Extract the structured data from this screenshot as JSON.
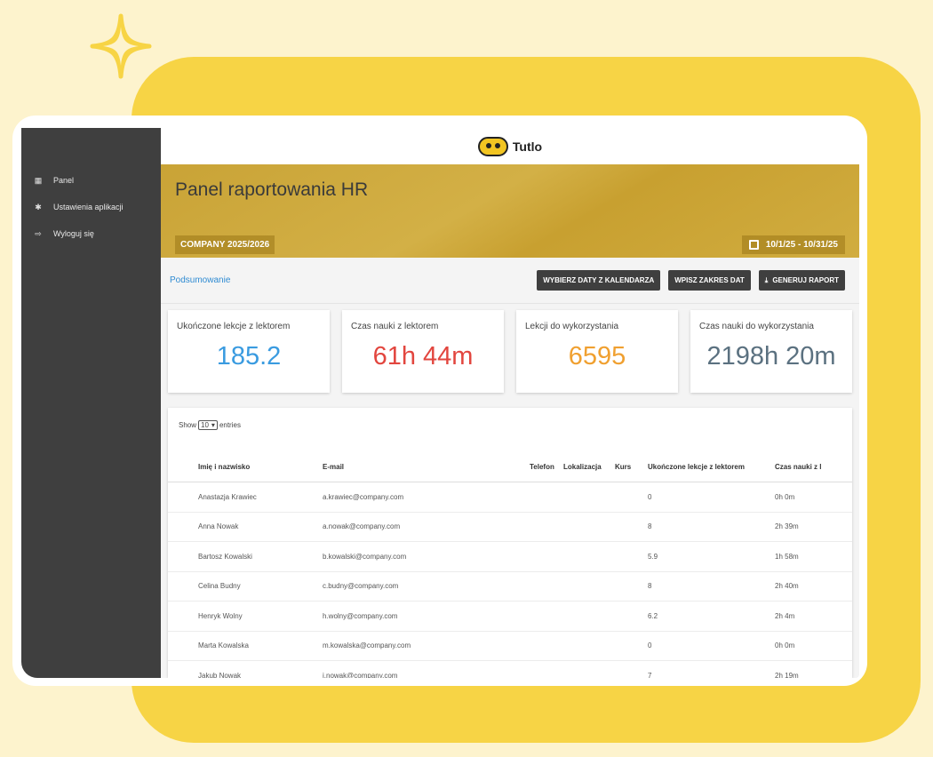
{
  "app": {
    "logo_text": "Tutlo"
  },
  "sidebar": {
    "items": [
      {
        "label": "Panel",
        "icon": "grid-icon"
      },
      {
        "label": "Ustawienia aplikacji",
        "icon": "gear-icon"
      },
      {
        "label": "Wyloguj się",
        "icon": "logout-icon"
      }
    ]
  },
  "hero": {
    "title": "Panel raportowania HR",
    "company": "COMPANY 2025/2026",
    "date_range": "10/1/25 - 10/31/25"
  },
  "actions": {
    "summary_link": "Podsumowanie",
    "calendar_button": "WYBIERZ DATY Z KALENDARZA",
    "range_button": "WPISZ ZAKRES DAT",
    "report_button": "GENERUJ RAPORT"
  },
  "stats": [
    {
      "label": "Ukończone lekcje z lektorem",
      "value": "185.2",
      "color": "#3a9be0"
    },
    {
      "label": "Czas nauki z lektorem",
      "value": "61h 44m",
      "color": "#e2463f"
    },
    {
      "label": "Lekcji do wykorzystania",
      "value": "6595",
      "color": "#f0a030"
    },
    {
      "label": "Czas nauki do wykorzystania",
      "value": "2198h 20m",
      "color": "#5b7180"
    }
  ],
  "table": {
    "show_prefix": "Show",
    "page_size": "10",
    "show_suffix": "entries",
    "headers": [
      "Imię i nazwisko",
      "E-mail",
      "Telefon",
      "Lokalizacja",
      "Kurs",
      "Ukończone lekcje z lektorem",
      "Czas nauki z l"
    ],
    "rows": [
      [
        "Anastazja Krawiec",
        "a.krawiec@company.com",
        "",
        "",
        "",
        "0",
        "0h 0m"
      ],
      [
        "Anna Nowak",
        "a.nowak@company.com",
        "",
        "",
        "",
        "8",
        "2h 39m"
      ],
      [
        "Bartosz Kowalski",
        "b.kowalski@company.com",
        "",
        "",
        "",
        "5.9",
        "1h 58m"
      ],
      [
        "Celina Budny",
        "c.budny@company.com",
        "",
        "",
        "",
        "8",
        "2h 40m"
      ],
      [
        "Henryk Wolny",
        "h.wolny@company.com",
        "",
        "",
        "",
        "6.2",
        "2h 4m"
      ],
      [
        "Marta Kowalska",
        "m.kowalska@company.com",
        "",
        "",
        "",
        "0",
        "0h 0m"
      ],
      [
        "Jakub Nowak",
        "j.nowak@company.com",
        "",
        "",
        "",
        "7",
        "2h 19m"
      ]
    ]
  }
}
